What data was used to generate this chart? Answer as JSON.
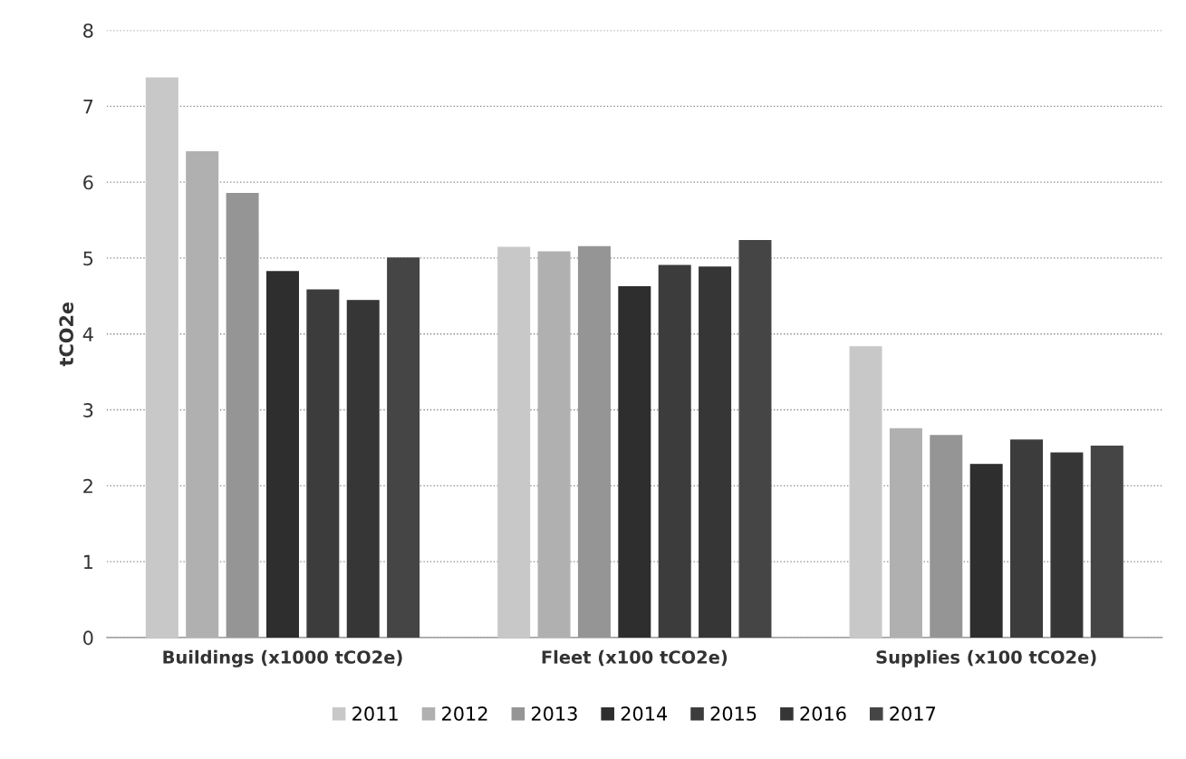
{
  "chart_data": {
    "type": "bar",
    "ylabel": "tCO2e",
    "categories": [
      "Buildings (x1000 tCO2e)",
      "Fleet (x100 tCO2e)",
      "Supplies (x100 tCO2e)"
    ],
    "series": [
      {
        "name": "2011",
        "color": "#c8c8c8",
        "values": [
          7.37,
          5.14,
          3.83
        ]
      },
      {
        "name": "2012",
        "color": "#b0b0b0",
        "values": [
          6.4,
          5.08,
          2.75
        ]
      },
      {
        "name": "2013",
        "color": "#959595",
        "values": [
          5.85,
          5.15,
          2.66
        ]
      },
      {
        "name": "2014",
        "color": "#2e2e2e",
        "values": [
          4.82,
          4.62,
          2.28
        ]
      },
      {
        "name": "2015",
        "color": "#3c3c3c",
        "values": [
          4.58,
          4.9,
          2.6
        ]
      },
      {
        "name": "2016",
        "color": "#363636",
        "values": [
          4.44,
          4.88,
          2.43
        ]
      },
      {
        "name": "2017",
        "color": "#454545",
        "values": [
          5.0,
          5.23,
          2.52
        ]
      }
    ],
    "ylim": [
      0,
      8
    ],
    "yticks": [
      0,
      1,
      2,
      3,
      4,
      5,
      6,
      7,
      8
    ],
    "grid": "y",
    "legend": "bottom"
  }
}
